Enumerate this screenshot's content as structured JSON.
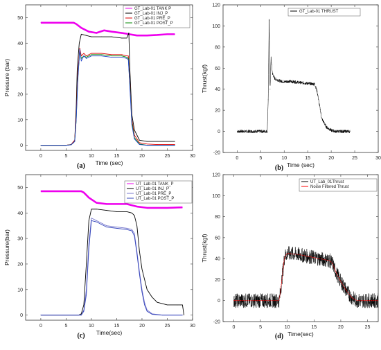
{
  "chart_data": [
    {
      "type": "line",
      "caption": "(a)",
      "xlabel": "Time (sec)",
      "ylabel": "Pressure (bar)",
      "xlim": [
        -3,
        30
      ],
      "ylim": [
        -2,
        55
      ],
      "xticks": [
        0,
        5,
        10,
        15,
        20,
        25,
        30
      ],
      "yticks": [
        0,
        10,
        20,
        30,
        40,
        50
      ],
      "legend": "top-right",
      "series": [
        {
          "name": "GT_Lab-01 TANK P",
          "color": "#ee00ee",
          "x": [
            0,
            6.5,
            7,
            8,
            9.5,
            11,
            12.5,
            14,
            16,
            17.5,
            19,
            21,
            23,
            25,
            26.5
          ],
          "y": [
            48,
            48,
            47.5,
            46,
            44.5,
            44,
            45,
            44.5,
            44,
            43.5,
            43,
            43,
            43.2,
            43.5,
            43.5
          ]
        },
        {
          "name": "GT_Lab-01 INJ_P",
          "color": "#000000",
          "x": [
            0,
            5,
            6,
            6.7,
            7,
            7.2,
            7.6,
            8,
            9,
            10,
            12,
            14,
            16,
            17,
            17.4,
            17.6,
            18,
            18.5,
            19.5,
            21,
            23,
            26.5
          ],
          "y": [
            0,
            0,
            0.3,
            2,
            15,
            30,
            40,
            43.5,
            43,
            42.5,
            42.5,
            42.5,
            42,
            42,
            44,
            30,
            12,
            6,
            2,
            1.5,
            1.5,
            1.5
          ]
        },
        {
          "name": "GT_Lab-01 PRE_P",
          "color": "#dd0000",
          "x": [
            0,
            5,
            6,
            6.7,
            7,
            7.3,
            7.7,
            8,
            8.5,
            9,
            10,
            12,
            14,
            16,
            17,
            17.3,
            17.6,
            18,
            18.5,
            19.5,
            21,
            23,
            26.5
          ],
          "y": [
            0,
            0,
            0.3,
            2,
            12,
            28,
            38,
            35,
            36,
            35,
            36,
            36,
            35.5,
            35.5,
            35,
            35,
            25,
            10,
            4,
            1,
            0.5,
            0.3,
            0.3
          ]
        },
        {
          "name": "GT_Lab-01 POST_P",
          "color": "#008800",
          "x": [
            0,
            5,
            6,
            6.7,
            7,
            7.3,
            7.7,
            8,
            8.5,
            9,
            10,
            12,
            14,
            16,
            17,
            17.3,
            17.6,
            18,
            18.5,
            19.5,
            21,
            23,
            26.5
          ],
          "y": [
            0,
            0,
            0.2,
            1.5,
            10,
            26,
            37,
            34,
            35,
            34.5,
            35.5,
            35.5,
            35,
            35,
            34.5,
            34,
            24,
            9,
            3,
            0.5,
            0,
            0,
            0
          ]
        },
        {
          "name": "",
          "color": "#2244cc",
          "x": [
            0,
            5,
            6,
            6.7,
            7,
            7.3,
            7.7,
            8,
            8.5,
            9,
            10,
            12,
            14,
            16,
            17,
            17.3,
            17.6,
            18,
            18.5,
            19.5,
            21,
            23,
            26.5
          ],
          "y": [
            0,
            0,
            0.2,
            1.5,
            10,
            25,
            37.5,
            33,
            35,
            34,
            35,
            35,
            34.5,
            34.5,
            34,
            33.5,
            23,
            8,
            2.5,
            0.3,
            0,
            0,
            0
          ]
        }
      ]
    },
    {
      "type": "line",
      "caption": "(b)",
      "xlabel": "Time (sec)",
      "ylabel": "Thrust(kgf)",
      "xlim": [
        -3,
        30
      ],
      "ylim": [
        -20,
        120
      ],
      "xticks": [
        0,
        5,
        10,
        15,
        20,
        25,
        30
      ],
      "yticks": [
        -20,
        0,
        20,
        40,
        60,
        80,
        100,
        120
      ],
      "legend": "top-right",
      "series": [
        {
          "name": "GT_Lab-01 THRUST",
          "color": "#000000",
          "x": [
            0,
            6.4,
            6.6,
            6.8,
            7.0,
            7.2,
            7.5,
            8,
            9,
            10,
            11,
            12,
            14,
            16,
            16.5,
            17,
            17.5,
            18,
            19,
            20,
            21,
            24
          ],
          "y": [
            0,
            0,
            30,
            105,
            40,
            70,
            55,
            50,
            48,
            47,
            47.5,
            47,
            46,
            45,
            45,
            38,
            25,
            12,
            4,
            1,
            0,
            0
          ],
          "noise": 1.5
        }
      ]
    },
    {
      "type": "line",
      "caption": "(c)",
      "xlabel": "Time(sec)",
      "ylabel": "Pressure(bar)",
      "xlim": [
        -3,
        30
      ],
      "ylim": [
        -2,
        55
      ],
      "xticks": [
        0,
        5,
        10,
        15,
        20,
        25,
        30
      ],
      "yticks": [
        0,
        10,
        20,
        30,
        40,
        50
      ],
      "legend": "top-right",
      "series": [
        {
          "name": "UT_Lab-01 TANK_P",
          "color": "#ee00ee",
          "x": [
            0,
            8,
            8.5,
            9.5,
            11,
            13,
            15,
            17,
            19,
            21,
            25,
            28
          ],
          "y": [
            48.5,
            48.5,
            48,
            46,
            44,
            43.5,
            43.5,
            43.5,
            42.5,
            42,
            42,
            42.2
          ]
        },
        {
          "name": "UT_Lab-01 INJ_P",
          "color": "#000000",
          "x": [
            0,
            7.5,
            8,
            8.5,
            9,
            9.5,
            10,
            11,
            13,
            15,
            17,
            18,
            18.5,
            19,
            19.5,
            20,
            21,
            22,
            23,
            25,
            27,
            28,
            28.3
          ],
          "y": [
            0,
            0,
            0.5,
            4,
            20,
            37,
            41.5,
            41.5,
            41,
            40.5,
            40.5,
            40,
            39,
            35,
            25,
            18,
            10,
            7,
            5,
            4,
            4,
            4,
            0
          ]
        },
        {
          "name": "UT_Lab-01 PRE_P",
          "color": "#7777cc",
          "x": [
            0,
            8,
            8.5,
            9,
            9.5,
            10,
            11,
            12,
            13,
            15,
            17,
            18,
            18.5,
            19,
            19.5,
            20,
            20.5,
            21,
            22,
            24,
            28
          ],
          "y": [
            0,
            0,
            2,
            10,
            28,
            38,
            37,
            36,
            35,
            34.5,
            34,
            33.5,
            32,
            25,
            17,
            10,
            5,
            2,
            0.5,
            0,
            0
          ]
        },
        {
          "name": "UT_Lab-01 POST_P",
          "color": "#3344bb",
          "x": [
            0,
            8,
            8.5,
            9,
            9.5,
            10,
            11,
            12,
            13,
            15,
            17,
            18,
            18.5,
            19,
            19.5,
            20,
            20.5,
            21,
            22,
            24,
            28
          ],
          "y": [
            0,
            0,
            1.5,
            8,
            26,
            37,
            36.5,
            35.5,
            34.5,
            34,
            33.5,
            33,
            31,
            24,
            16,
            9,
            4,
            1.5,
            0.3,
            0,
            0
          ]
        }
      ]
    },
    {
      "type": "line",
      "caption": "(d)",
      "xlabel": "Time(sec)",
      "ylabel": "Thrust(kgf)",
      "xlim": [
        -2,
        27
      ],
      "ylim": [
        -20,
        120
      ],
      "xticks": [
        0,
        5,
        10,
        15,
        20,
        25
      ],
      "yticks": [
        -20,
        0,
        20,
        40,
        60,
        80,
        100,
        120
      ],
      "legend": "top-right",
      "series": [
        {
          "name": "UT_Lab_01Thrust",
          "color": "#000000",
          "x": [
            0,
            8.5,
            9,
            9.5,
            10,
            12,
            14,
            16,
            18,
            18.5,
            19,
            20,
            21,
            22,
            23,
            27
          ],
          "y": [
            0,
            0,
            20,
            42,
            45,
            44,
            42,
            40,
            38,
            35,
            28,
            18,
            10,
            3,
            0,
            0
          ],
          "noise": 7
        }
      ]
    }
  ],
  "legend_extra": {
    "d_filtered": {
      "name": "Noise Filtered Thrust",
      "color": "#ff0000"
    }
  }
}
